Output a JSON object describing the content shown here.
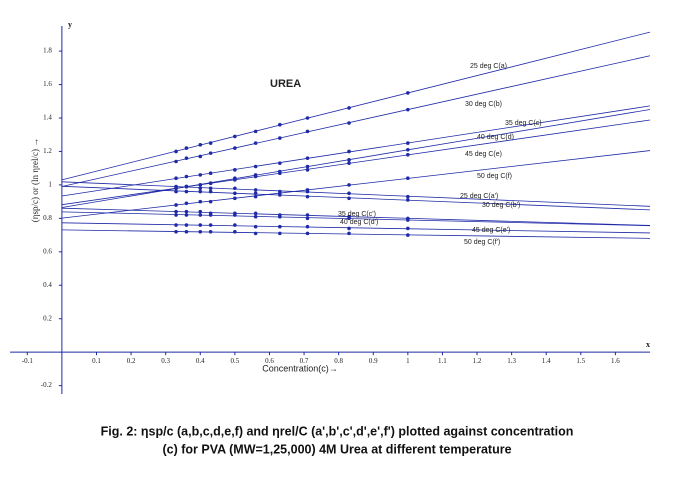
{
  "chart_data": {
    "type": "scatter",
    "title": "UREA",
    "x_label": "Concentration(c)→",
    "y_label": "(ηsp/c)   or   (ln ηrel/c)  →",
    "x_axis_name": "x",
    "y_axis_name": "y",
    "caption": [
      "Fig. 2: ηsp/c (a,b,c,d,e,f) and ηrel/C (a',b',c',d',e',f') plotted against concentration",
      "(c) for PVA (MW=1,25,000) 4M Urea at different temperature"
    ],
    "color": "#1f2aa6",
    "xlim": [
      -0.15,
      1.7
    ],
    "ylim": [
      -0.25,
      1.95
    ],
    "xticks": [
      -0.1,
      0.1,
      0.2,
      0.3,
      0.4,
      0.5,
      0.6,
      0.7,
      0.8,
      0.9,
      1,
      1.1,
      1.2,
      1.3,
      1.4,
      1.5,
      1.6
    ],
    "yticks": [
      -0.2,
      0.2,
      0.4,
      0.6,
      0.8,
      1,
      1.2,
      1.4,
      1.6,
      1.8
    ],
    "x": [
      0.33,
      0.36,
      0.4,
      0.43,
      0.5,
      0.56,
      0.63,
      0.71,
      0.83,
      1
    ],
    "series": [
      {
        "name": "25 deg C(a)",
        "values": [
          1.2,
          1.22,
          1.24,
          1.25,
          1.29,
          1.32,
          1.36,
          1.4,
          1.46,
          1.55
        ]
      },
      {
        "name": "30 deg C(b)",
        "values": [
          1.14,
          1.16,
          1.17,
          1.19,
          1.22,
          1.25,
          1.28,
          1.32,
          1.37,
          1.45
        ]
      },
      {
        "name": "35 deg C(c)",
        "values": [
          1.04,
          1.05,
          1.06,
          1.07,
          1.09,
          1.11,
          1.13,
          1.16,
          1.2,
          1.25
        ]
      },
      {
        "name": "40 deg C(d)",
        "values": [
          0.98,
          0.99,
          1.0,
          1.01,
          1.04,
          1.06,
          1.08,
          1.11,
          1.15,
          1.21
        ]
      },
      {
        "name": "45 deg C(e)",
        "values": [
          0.98,
          0.99,
          1.0,
          1.01,
          1.03,
          1.05,
          1.07,
          1.09,
          1.13,
          1.18
        ]
      },
      {
        "name": "50 deg C(f)",
        "values": [
          0.88,
          0.89,
          0.9,
          0.9,
          0.92,
          0.93,
          0.95,
          0.97,
          1.0,
          1.04
        ]
      },
      {
        "name": "25 deg C(a')",
        "values": [
          0.99,
          0.99,
          0.98,
          0.98,
          0.98,
          0.97,
          0.96,
          0.96,
          0.95,
          0.93
        ]
      },
      {
        "name": "30 deg C(b')",
        "values": [
          0.96,
          0.96,
          0.96,
          0.96,
          0.95,
          0.95,
          0.94,
          0.93,
          0.92,
          0.91
        ]
      },
      {
        "name": "35 deg C(c')",
        "values": [
          0.84,
          0.84,
          0.84,
          0.83,
          0.83,
          0.83,
          0.82,
          0.82,
          0.81,
          0.8
        ]
      },
      {
        "name": "40 deg C(d')",
        "values": [
          0.82,
          0.82,
          0.82,
          0.82,
          0.82,
          0.81,
          0.81,
          0.8,
          0.8,
          0.79
        ]
      },
      {
        "name": "45 deg C(e')",
        "values": [
          0.76,
          0.76,
          0.76,
          0.76,
          0.76,
          0.75,
          0.75,
          0.75,
          0.74,
          0.74
        ]
      },
      {
        "name": "50 deg C(f')",
        "values": [
          0.72,
          0.72,
          0.72,
          0.72,
          0.72,
          0.71,
          0.71,
          0.71,
          0.71,
          0.7
        ]
      }
    ]
  }
}
